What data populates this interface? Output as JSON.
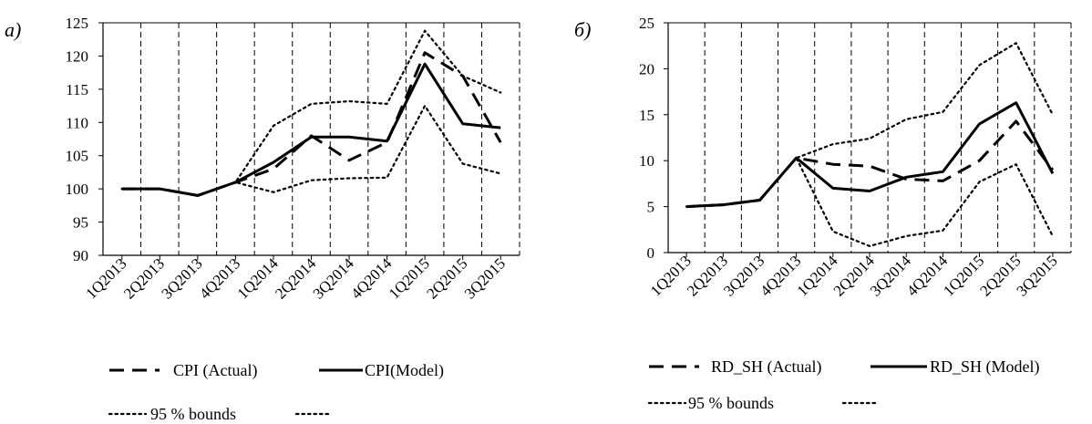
{
  "chart_data": [
    {
      "type": "line",
      "panel_label": "а)",
      "categories": [
        "1Q2013",
        "2Q2013",
        "3Q2013",
        "4Q2013",
        "1Q2014",
        "2Q2014",
        "3Q2014",
        "4Q2014",
        "1Q2015",
        "2Q2015",
        "3Q2015"
      ],
      "ylim": [
        90,
        125
      ],
      "yticks": [
        90,
        95,
        100,
        105,
        110,
        115,
        120,
        125
      ],
      "grid": "vertical dashed",
      "series": [
        {
          "name": "CPI (Actual)",
          "style": "dashed",
          "values": [
            100,
            100,
            99,
            101,
            103,
            108,
            104.3,
            107,
            120.5,
            117,
            107
          ]
        },
        {
          "name": "CPI(Model)",
          "style": "solid",
          "values": [
            100,
            100,
            99,
            101,
            104,
            107.8,
            107.8,
            107.2,
            118.8,
            109.8,
            109.2
          ]
        },
        {
          "name": "95 % bounds",
          "style": "dotted",
          "values": [
            100,
            100,
            99,
            101,
            109.5,
            112.8,
            113.2,
            112.8,
            123.8,
            117,
            114.5
          ]
        },
        {
          "name": "",
          "style": "dotted",
          "values": [
            100,
            100,
            99,
            101,
            99.5,
            101.3,
            101.6,
            101.7,
            112.5,
            103.8,
            102.3
          ]
        }
      ],
      "legend": [
        {
          "label": "CPI (Actual)",
          "style": "dashed"
        },
        {
          "label": "CPI(Model)",
          "style": "solid"
        },
        {
          "label": "95 % bounds",
          "style": "dotted"
        }
      ]
    },
    {
      "type": "line",
      "panel_label": "б)",
      "categories": [
        "1Q2013",
        "2Q2013",
        "3Q2013",
        "4Q2013",
        "1Q2014",
        "2Q2014",
        "3Q2014",
        "4Q2014",
        "1Q2015",
        "2Q2015",
        "3Q2015"
      ],
      "ylim": [
        0,
        25
      ],
      "yticks": [
        0,
        5,
        10,
        15,
        20,
        25
      ],
      "grid": "vertical dashed",
      "series": [
        {
          "name": "RD_SH (Actual)",
          "style": "dashed",
          "values": [
            5,
            5.2,
            5.7,
            10.3,
            9.6,
            9.4,
            8,
            7.8,
            10,
            14.3,
            9
          ]
        },
        {
          "name": "RD_SH (Model)",
          "style": "solid",
          "values": [
            5,
            5.2,
            5.7,
            10.3,
            7,
            6.7,
            8.2,
            8.8,
            14,
            16.3,
            8.6
          ]
        },
        {
          "name": "95 % bounds",
          "style": "dotted",
          "values": [
            5,
            5.2,
            5.7,
            10.3,
            11.8,
            12.4,
            14.5,
            15.3,
            20.4,
            22.8,
            15
          ]
        },
        {
          "name": "",
          "style": "dotted",
          "values": [
            5,
            5.2,
            5.7,
            10.3,
            2.3,
            0.7,
            1.8,
            2.4,
            7.7,
            9.6,
            1.8
          ]
        }
      ],
      "legend": [
        {
          "label": "RD_SH (Actual)",
          "style": "dashed"
        },
        {
          "label": "RD_SH (Model)",
          "style": "solid"
        },
        {
          "label": "95 % bounds",
          "style": "dotted"
        }
      ]
    }
  ]
}
